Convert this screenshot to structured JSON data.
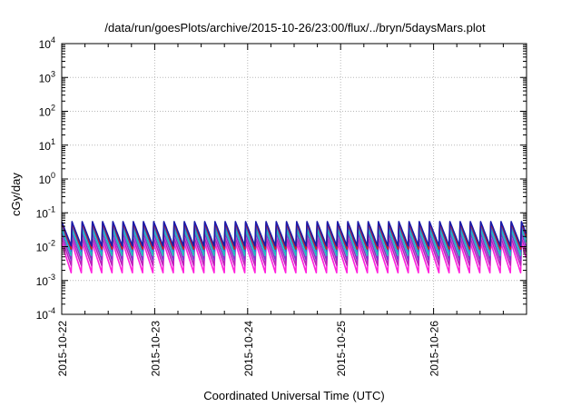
{
  "chart_data": {
    "type": "line",
    "title": "/data/run/goesPlots/archive/2015-10-26/23:00/flux/../bryn/5daysMars.plot",
    "xlabel": "Coordinated Universal Time (UTC)",
    "ylabel": "cGy/day",
    "y_scale": "log",
    "ylim": [
      0.0001,
      10000
    ],
    "y_ticks": [
      {
        "base": "10",
        "exp": "-4",
        "value": 0.0001
      },
      {
        "base": "10",
        "exp": "-3",
        "value": 0.001
      },
      {
        "base": "10",
        "exp": "-2",
        "value": 0.01
      },
      {
        "base": "10",
        "exp": "-1",
        "value": 0.1
      },
      {
        "base": "10",
        "exp": "0",
        "value": 1
      },
      {
        "base": "10",
        "exp": "1",
        "value": 10
      },
      {
        "base": "10",
        "exp": "2",
        "value": 100
      },
      {
        "base": "10",
        "exp": "3",
        "value": 1000
      },
      {
        "base": "10",
        "exp": "4",
        "value": 10000
      }
    ],
    "xlim": [
      "2015-10-22",
      "2015-10-27"
    ],
    "x_ticks": [
      "2015-10-22",
      "2015-10-23",
      "2015-10-24",
      "2015-10-25",
      "2015-10-26"
    ],
    "grid": true,
    "cycles_per_day": 9.1,
    "series": [
      {
        "color": "#1a1aaa",
        "peak": 0.055,
        "trough": 0.0105
      },
      {
        "color": "#cc2222",
        "peak": 0.05,
        "trough": 0.0085
      },
      {
        "color": "#2277dd",
        "peak": 0.042,
        "trough": 0.0075
      },
      {
        "color": "#22bbbb",
        "peak": 0.032,
        "trough": 0.0055
      },
      {
        "color": "#8833cc",
        "peak": 0.025,
        "trough": 0.004
      },
      {
        "color": "#bb22bb",
        "peak": 0.018,
        "trough": 0.0028
      },
      {
        "color": "#ff22dd",
        "peak": 0.013,
        "trough": 0.0017
      }
    ]
  }
}
